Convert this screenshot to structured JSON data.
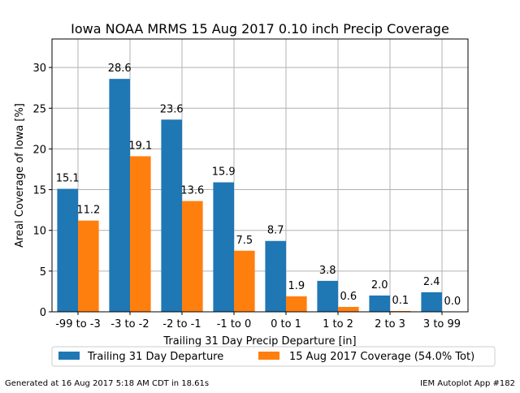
{
  "chart_data": {
    "type": "bar",
    "title": "Iowa NOAA MRMS 15 Aug 2017 0.10 inch Precip Coverage",
    "xlabel": "Trailing 31 Day Precip Departure [in]",
    "ylabel": "Areal Coverage of Iowa [%]",
    "ylim": [
      0,
      33.5
    ],
    "yticks": [
      "0",
      "5",
      "10",
      "15",
      "20",
      "25",
      "30"
    ],
    "grid": true,
    "legend_position": "bottom-center",
    "categories": [
      "-99 to -3",
      "-3 to -2",
      "-2 to -1",
      "-1 to 0",
      "0 to 1",
      "1 to 2",
      "2 to 3",
      "3 to 99"
    ],
    "series": [
      {
        "name": "Trailing 31 Day Departure",
        "color": "#1f77b4",
        "values": [
          15.1,
          28.6,
          23.6,
          15.9,
          8.7,
          3.8,
          2.0,
          2.4
        ],
        "labels": [
          "15.1",
          "28.6",
          "23.6",
          "15.9",
          "8.7",
          "3.8",
          "2.0",
          "2.4"
        ]
      },
      {
        "name": "15 Aug 2017 Coverage (54.0% Tot)",
        "color": "#ff7f0e",
        "values": [
          11.2,
          19.1,
          13.6,
          7.5,
          1.9,
          0.6,
          0.1,
          0.0
        ],
        "labels": [
          "11.2",
          "19.1",
          "13.6",
          "7.5",
          "1.9",
          "0.6",
          "0.1",
          "0.0"
        ]
      }
    ]
  },
  "footer": {
    "left": "Generated at 16 Aug 2017 5:18 AM CDT in 18.61s",
    "right": "IEM Autoplot App #182"
  }
}
